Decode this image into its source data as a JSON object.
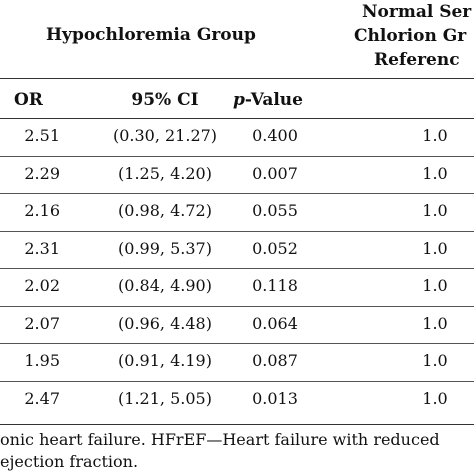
{
  "header": {
    "group_label": "Hypochloremia Group",
    "ref_line1": "Normal Ser",
    "ref_line2": "Chlorion Gr",
    "ref_line3": "Referenc",
    "col_or": "OR",
    "col_ci": "95% CI",
    "col_p_italic": "p",
    "col_p_rest": "-Value"
  },
  "rows": [
    {
      "or": "2.51",
      "ci": "(0.30, 21.27)",
      "p": "0.400",
      "ref": "1.0"
    },
    {
      "or": "2.29",
      "ci": "(1.25, 4.20)",
      "p": "0.007",
      "ref": "1.0"
    },
    {
      "or": "2.16",
      "ci": "(0.98, 4.72)",
      "p": "0.055",
      "ref": "1.0"
    },
    {
      "or": "2.31",
      "ci": "(0.99, 5.37)",
      "p": "0.052",
      "ref": "1.0"
    },
    {
      "or": "2.02",
      "ci": "(0.84, 4.90)",
      "p": "0.118",
      "ref": "1.0"
    },
    {
      "or": "2.07",
      "ci": "(0.96, 4.48)",
      "p": "0.064",
      "ref": "1.0"
    },
    {
      "or": "1.95",
      "ci": "(0.91, 4.19)",
      "p": "0.087",
      "ref": "1.0"
    },
    {
      "or": "2.47",
      "ci": "(1.21, 5.05)",
      "p": "0.013",
      "ref": "1.0"
    }
  ],
  "footnote": {
    "line1": "onic heart failure. HFrEF—Heart failure with reduced",
    "line2": "ejection fraction."
  }
}
